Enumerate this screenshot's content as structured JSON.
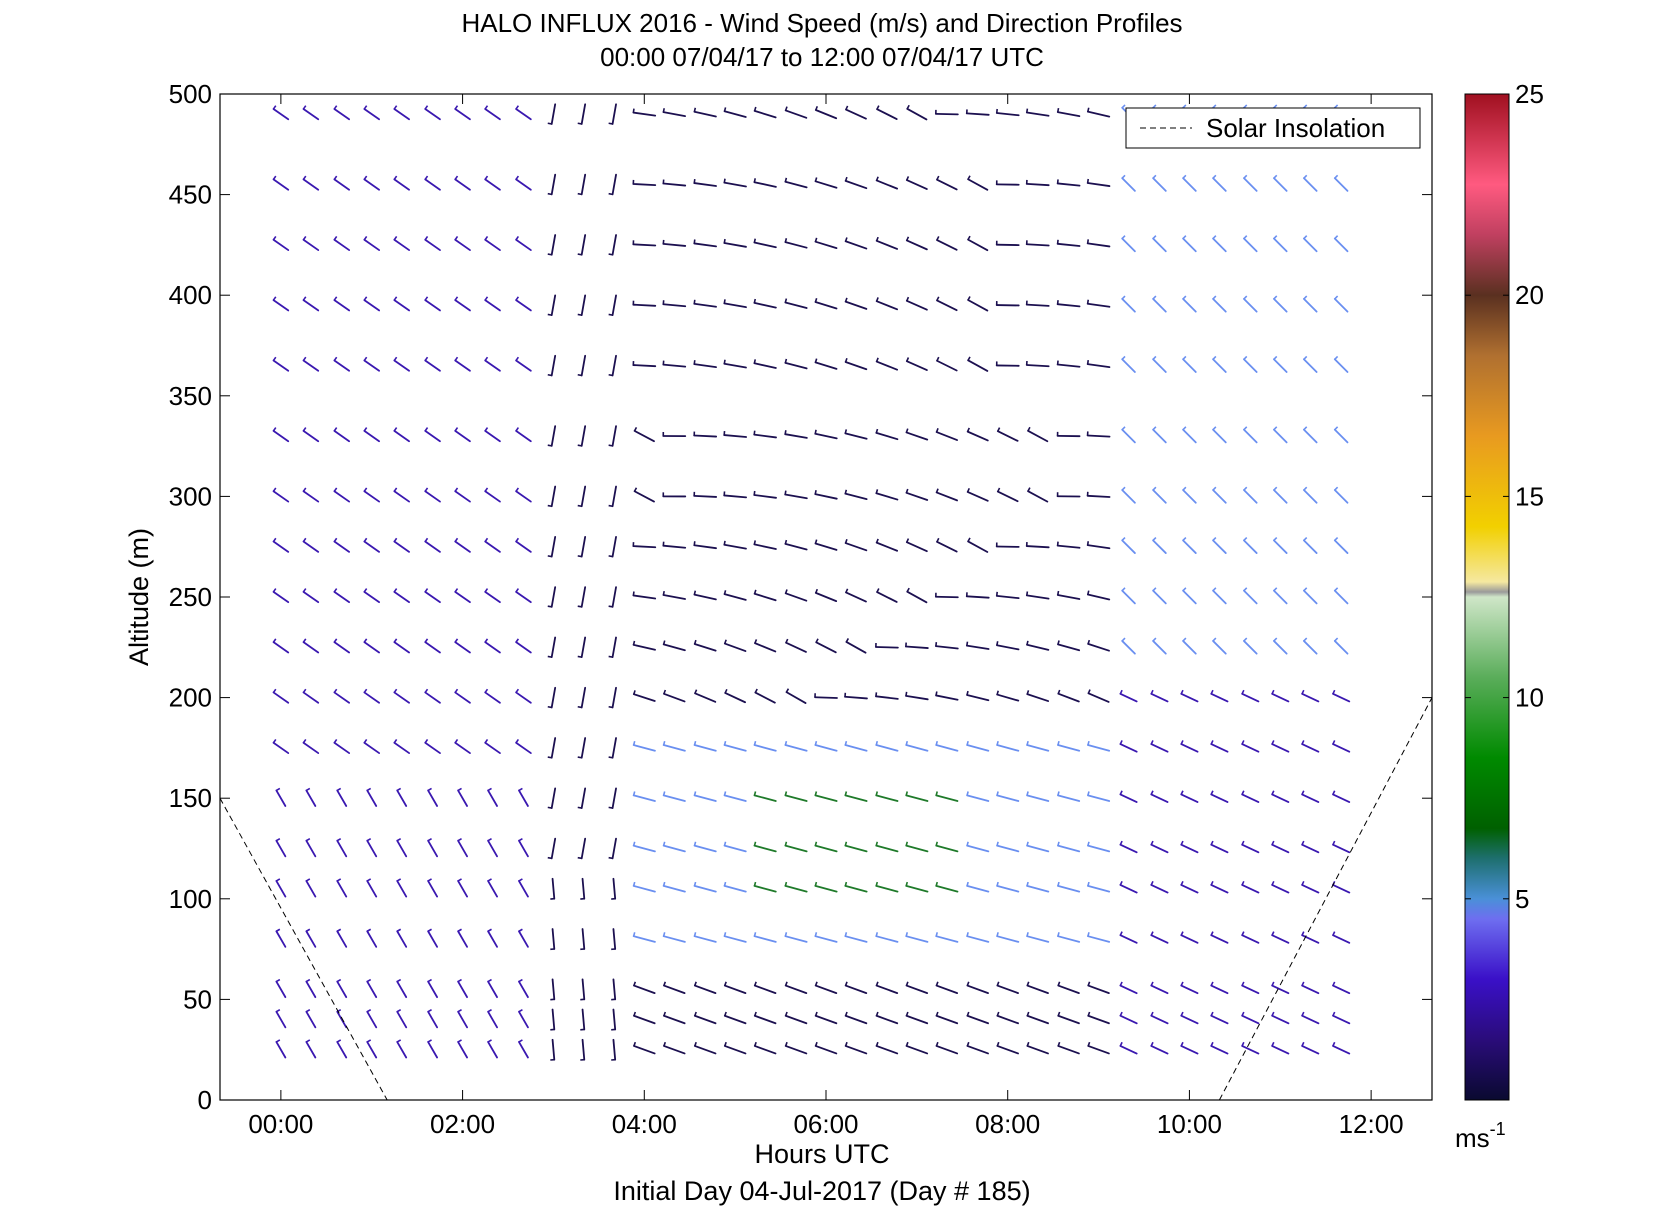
{
  "chart_data": {
    "type": "wind-barb-profile",
    "title": "HALO INFLUX 2016 - Wind Speed (m/s) and Direction Profiles",
    "subtitle": "00:00 07/04/17 to 12:00 07/04/17  UTC",
    "xlabel": "Hours UTC",
    "ylabel": "Altitude (m)",
    "footer": "Initial Day 04-Jul-2017 (Day # 185)",
    "xlim": [
      -0.67,
      12.67
    ],
    "ylim": [
      0,
      500
    ],
    "xticks": [
      "00:00",
      "02:00",
      "04:00",
      "06:00",
      "08:00",
      "10:00",
      "12:00"
    ],
    "xtick_values": [
      0,
      2,
      4,
      6,
      8,
      10,
      12
    ],
    "yticks": [
      "0",
      "50",
      "100",
      "150",
      "200",
      "250",
      "300",
      "350",
      "400",
      "450",
      "500"
    ],
    "ytick_values": [
      0,
      50,
      100,
      150,
      200,
      250,
      300,
      350,
      400,
      450,
      500
    ],
    "legend": {
      "label": "Solar Insolation",
      "position": "top-right"
    },
    "colorbar": {
      "unit_label": "ms",
      "unit_exponent": "-1",
      "ticks": [
        "5",
        "10",
        "15",
        "20",
        "25"
      ],
      "tick_values": [
        5,
        10,
        15,
        20,
        25
      ],
      "range": [
        0,
        25
      ]
    },
    "solar_insolation": {
      "segments": [
        [
          [
            -0.67,
            150
          ],
          [
            1.17,
            0
          ]
        ],
        [
          [
            10.33,
            0
          ],
          [
            12.67,
            200
          ]
        ]
      ]
    },
    "profile_times": [
      0,
      0.33,
      0.67,
      1,
      1.33,
      1.67,
      2,
      2.33,
      2.67,
      3,
      3.33,
      3.67,
      4,
      4.33,
      4.67,
      5,
      5.33,
      5.67,
      6,
      6.33,
      6.67,
      7,
      7.33,
      7.67,
      8,
      8.33,
      8.67,
      9,
      9.33,
      9.67,
      10,
      10.33,
      10.67,
      11,
      11.33,
      11.67
    ],
    "altitudes": [
      25,
      40,
      55,
      80,
      105,
      125,
      150,
      175,
      200,
      225,
      250,
      275,
      300,
      330,
      365,
      395,
      425,
      455,
      490
    ],
    "direction_regimes_note": "",
    "speed_by_segment": {
      "night_early": 2.5,
      "transition": 1.5,
      "day_low": 4.5,
      "day_jet_core": 8.0,
      "day_upper": 1.5,
      "late": 3.0,
      "late_upper": 4.5
    }
  }
}
